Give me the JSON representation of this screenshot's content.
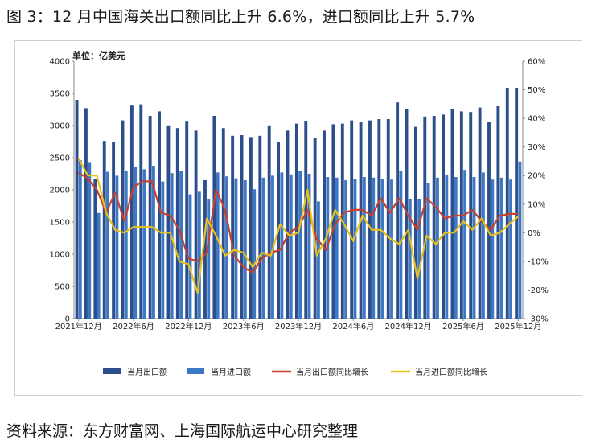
{
  "figure_title": "图 3：12 月中国海关出口额同比上升 6.6%，进口额同比上升 5.7%",
  "source": "资料来源：东方财富网、上海国际航运中心研究整理",
  "colors": {
    "export_bar": "#2c4e8a",
    "import_bar": "#3c78c4",
    "export_yoy": "#c8402e",
    "import_yoy": "#e8c11a",
    "axis": "#888888"
  },
  "chart_data": {
    "type": "bar",
    "unit_label": "单位：亿美元",
    "left_axis": {
      "min": 0,
      "max": 4000,
      "ticks": [
        0,
        500,
        1000,
        1500,
        2000,
        2500,
        3000,
        3500,
        4000
      ]
    },
    "right_axis": {
      "min": -30,
      "max": 60,
      "ticks": [
        -30,
        -20,
        -10,
        0,
        10,
        20,
        30,
        40,
        50,
        60
      ],
      "tick_labels": [
        "-30%",
        "-20%",
        "-10%",
        "0%",
        "10%",
        "20%",
        "30%",
        "40%",
        "50%",
        "60%"
      ]
    },
    "x_tick_labels": [
      {
        "index": 0,
        "label": "2021年12月"
      },
      {
        "index": 6,
        "label": "2022年6月"
      },
      {
        "index": 12,
        "label": "2022年12月"
      },
      {
        "index": 18,
        "label": "2023年6月"
      },
      {
        "index": 24,
        "label": "2023年12月"
      },
      {
        "index": 30,
        "label": "2024年6月"
      },
      {
        "index": 36,
        "label": "2024年12月"
      },
      {
        "index": 42,
        "label": "2025年6月"
      },
      {
        "index": 48,
        "label": "2025年12月"
      }
    ],
    "months": [
      "2021-12",
      "2022-01",
      "2022-02",
      "2022-03",
      "2022-04",
      "2022-05",
      "2022-06",
      "2022-07",
      "2022-08",
      "2022-09",
      "2022-10",
      "2022-11",
      "2022-12",
      "2023-01",
      "2023-02",
      "2023-03",
      "2023-04",
      "2023-05",
      "2023-06",
      "2023-07",
      "2023-08",
      "2023-09",
      "2023-10",
      "2023-11",
      "2023-12",
      "2024-01",
      "2024-02",
      "2024-03",
      "2024-04",
      "2024-05",
      "2024-06",
      "2024-07",
      "2024-08",
      "2024-09",
      "2024-10",
      "2024-11",
      "2024-12",
      "2025-01",
      "2025-02",
      "2025-03",
      "2025-04",
      "2025-05",
      "2025-06",
      "2025-07",
      "2025-08",
      "2025-09",
      "2025-10",
      "2025-11",
      "2025-12"
    ],
    "series": [
      {
        "name": "当月出口额",
        "kind": "bar",
        "axis": "left",
        "values": [
          3400,
          3270,
          2170,
          2760,
          2740,
          3080,
          3310,
          3330,
          3150,
          3220,
          2990,
          2960,
          3060,
          2920,
          2150,
          3150,
          2960,
          2840,
          2850,
          2820,
          2840,
          2990,
          2750,
          2920,
          3030,
          3070,
          2800,
          2920,
          3020,
          3030,
          3080,
          3050,
          3080,
          3100,
          3100,
          3360,
          3250,
          2980,
          3140,
          3150,
          3170,
          3250,
          3220,
          3210,
          3280,
          3050,
          3300,
          3580,
          3580
        ]
      },
      {
        "name": "当月进口额",
        "kind": "bar",
        "axis": "left",
        "values": [
          2460,
          2420,
          1640,
          2280,
          2220,
          2300,
          2350,
          2320,
          2370,
          2130,
          2260,
          2290,
          1930,
          1970,
          1850,
          2270,
          2210,
          2180,
          2150,
          2010,
          2190,
          2220,
          2270,
          2240,
          2290,
          2250,
          1820,
          2200,
          2190,
          2150,
          2170,
          2200,
          2190,
          2170,
          2160,
          2300,
          1860,
          1860,
          2100,
          2190,
          2230,
          2200,
          2310,
          2200,
          2270,
          2160,
          2190,
          2160,
          2440
        ]
      },
      {
        "name": "当月出口额同比增长",
        "kind": "line",
        "axis": "right",
        "values": [
          21,
          19,
          15,
          7,
          14,
          4,
          16,
          18,
          18,
          7,
          6,
          1,
          -9,
          -10,
          -7,
          15,
          8,
          -8,
          -12,
          -14,
          -9,
          -7,
          -6,
          0,
          2,
          8,
          -2,
          -6,
          3,
          7,
          8,
          8,
          6,
          12,
          7,
          12,
          6,
          1,
          12,
          9,
          5,
          6,
          6,
          8,
          4,
          1,
          6,
          6.6,
          6.6
        ]
      },
      {
        "name": "当月进口额同比增长",
        "kind": "line",
        "axis": "right",
        "values": [
          26,
          20,
          20,
          7,
          1,
          0,
          2,
          2,
          2,
          0,
          0,
          -10,
          -11,
          -21,
          5,
          -1,
          -8,
          -6,
          -7,
          -12,
          -7,
          -8,
          3,
          -1,
          0,
          15,
          -8,
          -2,
          8,
          3,
          -3,
          6,
          1,
          1,
          -2,
          -4,
          1,
          -16,
          -1,
          -4,
          0,
          0,
          4,
          1,
          5,
          -1,
          0,
          3,
          5.7
        ]
      }
    ]
  }
}
